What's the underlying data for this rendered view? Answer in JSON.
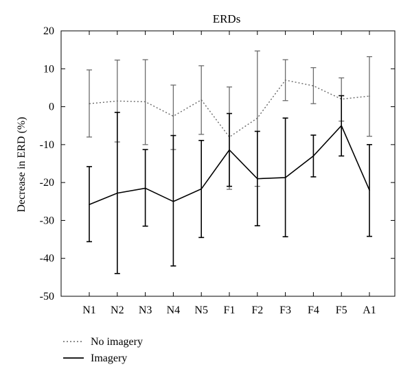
{
  "chart_data": {
    "type": "line",
    "title": "ERDs",
    "xlabel": "",
    "ylabel": "Decrease in ERD (%)",
    "ylim": [
      -50,
      20
    ],
    "yticks": [
      20,
      10,
      0,
      -10,
      -20,
      -30,
      -40,
      -50
    ],
    "categories": [
      "N1",
      "N2",
      "N3",
      "N4",
      "N5",
      "F1",
      "F2",
      "F3",
      "F4",
      "F5",
      "A1"
    ],
    "grid": false,
    "legend": "bottom-left",
    "series": [
      {
        "name": "No imagery",
        "style": "dotted",
        "color": "#666666",
        "values": [
          0.8,
          1.5,
          1.3,
          -2.5,
          1.8,
          -8.0,
          -3.0,
          7.0,
          5.5,
          2.0,
          2.8
        ],
        "err_low": [
          -8.0,
          -9.3,
          -10.0,
          -11.3,
          -7.3,
          -21.8,
          -21.0,
          1.6,
          0.8,
          -3.8,
          -7.8
        ],
        "err_high": [
          9.7,
          12.3,
          12.4,
          5.7,
          10.8,
          5.2,
          14.7,
          12.4,
          10.3,
          7.6,
          13.2
        ]
      },
      {
        "name": "Imagery",
        "style": "solid",
        "color": "#000000",
        "values": [
          -25.8,
          -22.8,
          -21.5,
          -25.0,
          -21.7,
          -11.4,
          -19.0,
          -18.7,
          -13.0,
          -5.0,
          -22.0
        ],
        "err_low": [
          -35.6,
          -44.0,
          -31.5,
          -42.0,
          -34.5,
          -21.0,
          -31.4,
          -34.3,
          -18.5,
          -13.0,
          -34.2
        ],
        "err_high": [
          -15.8,
          -1.5,
          -11.3,
          -7.6,
          -8.9,
          -1.8,
          -6.5,
          -3.0,
          -7.5,
          2.9,
          -10.0
        ]
      }
    ]
  }
}
